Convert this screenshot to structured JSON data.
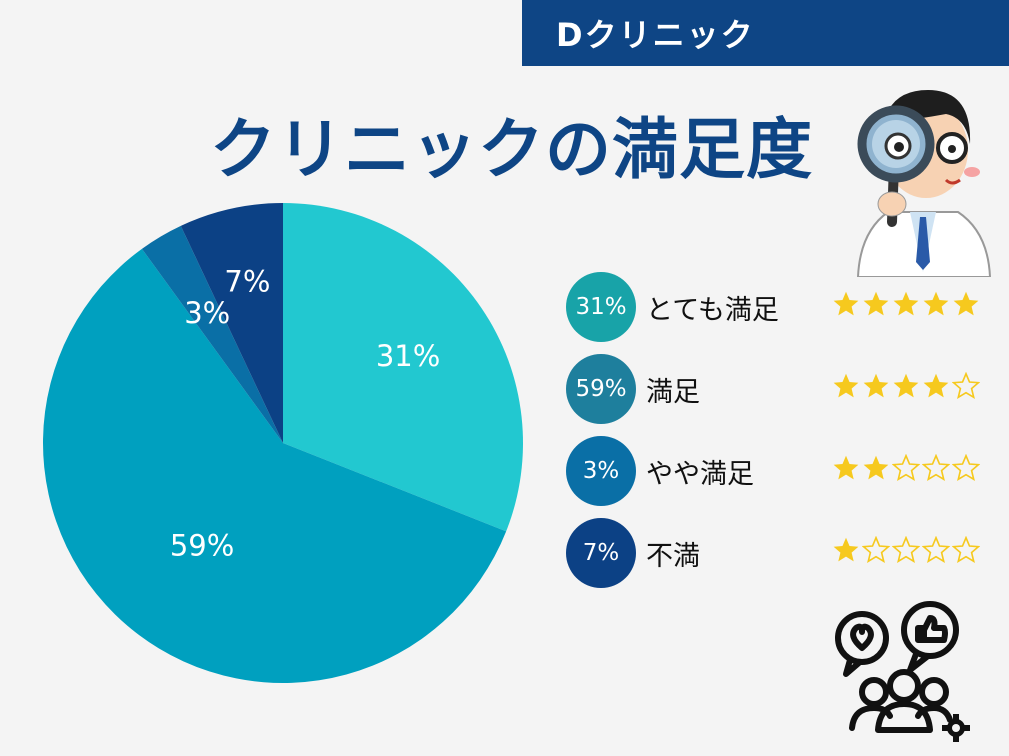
{
  "header": {
    "brand": "Dクリニック",
    "title": "クリニックの満足度"
  },
  "colors": {
    "banner": "#0e4585",
    "title": "#0e4585",
    "star_filled": "#f6c91e",
    "star_empty": "#f6c91e"
  },
  "chart_data": {
    "type": "pie",
    "title": "クリニックの満足度",
    "categories": [
      "とても満足",
      "満足",
      "やや満足",
      "不満"
    ],
    "values": [
      31,
      59,
      3,
      7
    ],
    "slice_labels": [
      "31%",
      "59%",
      "3%",
      "7%"
    ],
    "colors": [
      "#22c8d0",
      "#00a0bf",
      "#0a6fa6",
      "#0c4185"
    ]
  },
  "legend": [
    {
      "percent": "31%",
      "label": "とても満足",
      "stars": 5,
      "badge_color": "#18a3a8"
    },
    {
      "percent": "59%",
      "label": "満足",
      "stars": 4,
      "badge_color": "#1e7f9d"
    },
    {
      "percent": "3%",
      "label": "やや満足",
      "stars": 2,
      "badge_color": "#0a6fa6"
    },
    {
      "percent": "7%",
      "label": "不満",
      "stars": 1,
      "badge_color": "#0c4185"
    }
  ],
  "icons": {
    "doctor": "doctor-magnifier-illustration",
    "audience": "people-feedback-icon"
  }
}
